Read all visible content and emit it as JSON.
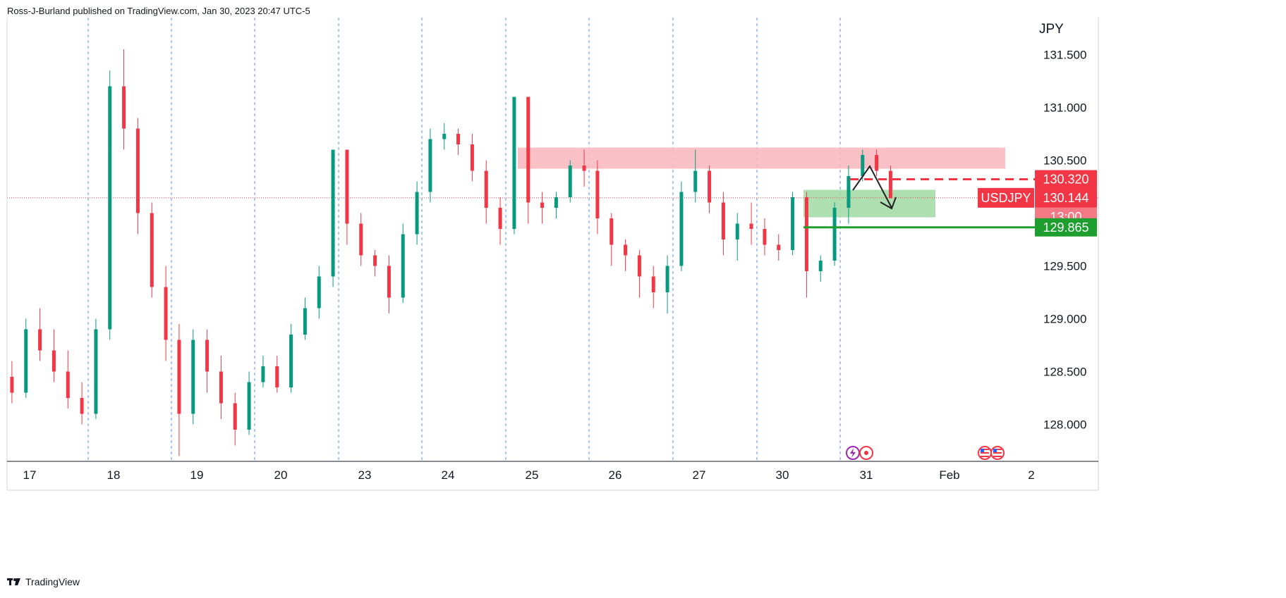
{
  "header": {
    "published_text": "Ross-J-Burland published on TradingView.com, Jan 30, 2023 20:47 UTC-5"
  },
  "footer": {
    "brand": "TradingView"
  },
  "chart_data": {
    "type": "candlestick",
    "currency_label": "JPY",
    "y_ticks": [
      "131.500",
      "131.000",
      "130.500",
      "130.000",
      "129.500",
      "129.000",
      "128.500",
      "128.000"
    ],
    "ylim": [
      127.65,
      131.85
    ],
    "x_ticks": [
      "17",
      "18",
      "19",
      "20",
      "23",
      "24",
      "25",
      "26",
      "27",
      "30",
      "31",
      "Feb",
      "2"
    ],
    "colors": {
      "up": "#089981",
      "down": "#f23645",
      "zone_red": "#f8b9c0",
      "zone_green": "#a5dba9",
      "support": "#1e9e2f",
      "grid": "#5b8ff0",
      "arrow": "#222222"
    },
    "series": [
      {
        "day": "17",
        "ohlc": [
          [
            128.45,
            128.6,
            128.2,
            128.3
          ],
          [
            128.3,
            129.0,
            128.25,
            128.9
          ],
          [
            128.9,
            129.1,
            128.6,
            128.7
          ],
          [
            128.7,
            128.9,
            128.4,
            128.5
          ],
          [
            128.5,
            128.7,
            128.15,
            128.25
          ],
          [
            128.25,
            128.4,
            128.0,
            128.1
          ]
        ]
      },
      {
        "day": "18",
        "ohlc": [
          [
            128.1,
            129.0,
            128.05,
            128.9
          ],
          [
            128.9,
            131.35,
            128.8,
            131.2
          ],
          [
            131.2,
            131.55,
            130.6,
            130.8
          ],
          [
            130.8,
            130.9,
            129.8,
            130.0
          ],
          [
            130.0,
            130.1,
            129.2,
            129.3
          ],
          [
            129.3,
            129.5,
            128.6,
            128.8
          ]
        ]
      },
      {
        "day": "19",
        "ohlc": [
          [
            128.8,
            128.95,
            127.7,
            128.1
          ],
          [
            128.1,
            128.9,
            128.0,
            128.8
          ],
          [
            128.8,
            128.9,
            128.3,
            128.5
          ],
          [
            128.5,
            128.65,
            128.05,
            128.2
          ],
          [
            128.2,
            128.3,
            127.8,
            127.95
          ],
          [
            127.95,
            128.5,
            127.9,
            128.4
          ]
        ]
      },
      {
        "day": "20",
        "ohlc": [
          [
            128.4,
            128.65,
            128.35,
            128.55
          ],
          [
            128.55,
            128.65,
            128.3,
            128.35
          ],
          [
            128.35,
            128.95,
            128.3,
            128.85
          ],
          [
            128.85,
            129.2,
            128.8,
            129.1
          ],
          [
            129.1,
            129.5,
            129.0,
            129.4
          ],
          [
            129.4,
            130.6,
            129.3,
            130.6
          ]
        ]
      },
      {
        "day": "23",
        "ohlc": [
          [
            130.6,
            130.6,
            129.7,
            129.9
          ],
          [
            129.9,
            130.0,
            129.5,
            129.6
          ],
          [
            129.6,
            129.65,
            129.4,
            129.5
          ],
          [
            129.5,
            129.6,
            129.05,
            129.2
          ],
          [
            129.2,
            129.9,
            129.15,
            129.8
          ],
          [
            129.8,
            130.3,
            129.7,
            130.2
          ]
        ]
      },
      {
        "day": "24",
        "ohlc": [
          [
            130.2,
            130.8,
            130.1,
            130.7
          ],
          [
            130.7,
            130.85,
            130.6,
            130.75
          ],
          [
            130.75,
            130.8,
            130.55,
            130.65
          ],
          [
            130.65,
            130.75,
            130.3,
            130.4
          ],
          [
            130.4,
            130.5,
            129.9,
            130.05
          ],
          [
            130.05,
            130.15,
            129.7,
            129.85
          ]
        ]
      },
      {
        "day": "25",
        "ohlc": [
          [
            129.85,
            131.1,
            129.8,
            131.1
          ],
          [
            131.1,
            131.1,
            129.9,
            130.1
          ],
          [
            130.1,
            130.2,
            129.9,
            130.05
          ],
          [
            130.05,
            130.2,
            129.95,
            130.15
          ],
          [
            130.15,
            130.5,
            130.1,
            130.45
          ],
          [
            130.45,
            130.6,
            130.25,
            130.4
          ]
        ]
      },
      {
        "day": "26",
        "ohlc": [
          [
            130.4,
            130.5,
            129.8,
            129.95
          ],
          [
            129.95,
            130.0,
            129.5,
            129.7
          ],
          [
            129.7,
            129.75,
            129.45,
            129.6
          ],
          [
            129.6,
            129.65,
            129.2,
            129.4
          ],
          [
            129.4,
            129.5,
            129.1,
            129.25
          ],
          [
            129.25,
            129.6,
            129.05,
            129.5
          ]
        ]
      },
      {
        "day": "27",
        "ohlc": [
          [
            129.5,
            130.3,
            129.45,
            130.2
          ],
          [
            130.2,
            130.6,
            130.1,
            130.4
          ],
          [
            130.4,
            130.45,
            130.0,
            130.1
          ],
          [
            130.1,
            130.2,
            129.6,
            129.75
          ],
          [
            129.75,
            130.0,
            129.55,
            129.9
          ],
          [
            129.9,
            130.1,
            129.7,
            129.85
          ]
        ]
      },
      {
        "day": "30",
        "ohlc": [
          [
            129.85,
            129.95,
            129.6,
            129.7
          ],
          [
            129.7,
            129.8,
            129.55,
            129.65
          ],
          [
            129.65,
            130.2,
            129.6,
            130.15
          ],
          [
            130.15,
            130.2,
            129.2,
            129.45
          ],
          [
            129.45,
            129.6,
            129.35,
            129.55
          ],
          [
            129.55,
            130.1,
            129.5,
            130.05
          ]
        ]
      },
      {
        "day": "31",
        "ohlc": [
          [
            130.05,
            130.45,
            129.9,
            130.35
          ],
          [
            130.35,
            130.6,
            130.3,
            130.55
          ],
          [
            130.55,
            130.6,
            130.35,
            130.4
          ],
          [
            130.4,
            130.45,
            130.15,
            130.14
          ]
        ]
      }
    ],
    "zones": [
      {
        "name": "resistance-zone",
        "from": 130.42,
        "to": 130.62,
        "start_day": "25",
        "end_day": "Feb"
      },
      {
        "name": "target-zone",
        "from": 129.96,
        "to": 130.22,
        "start_day": "30",
        "end_day": "31"
      }
    ],
    "levels": [
      {
        "name": "resistance-level",
        "value": 130.32,
        "label": "130.320",
        "style": "dashed"
      },
      {
        "name": "support-level",
        "value": 129.865,
        "label": "129.865",
        "style": "solid"
      }
    ],
    "price_tag": {
      "symbol": "USDJPY",
      "value": 130.144,
      "label": "130.144",
      "countdown": "13:00"
    }
  }
}
